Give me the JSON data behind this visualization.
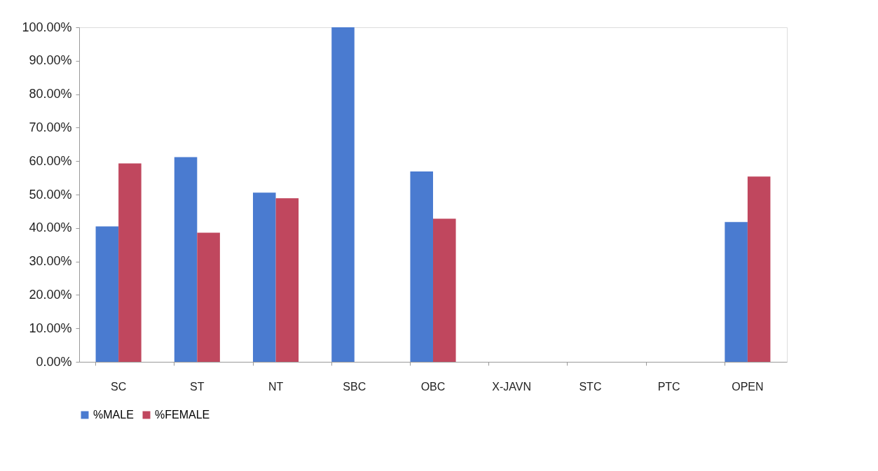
{
  "chart_data": {
    "type": "bar",
    "categories": [
      "SC",
      "ST",
      "NT",
      "SBC",
      "OBC",
      "X-JAVN",
      "STC",
      "PTC",
      "OPEN"
    ],
    "series": [
      {
        "name": "%MALE",
        "color": "#4a7bd0",
        "values": [
          40.5,
          61.2,
          50.6,
          100,
          56.9,
          0,
          0,
          0,
          41.8
        ]
      },
      {
        "name": "%FEMALE",
        "color": "#c0475e",
        "values": [
          59.3,
          38.6,
          48.9,
          0,
          42.8,
          0,
          0,
          0,
          55.4
        ]
      }
    ],
    "ylim": [
      0,
      100
    ],
    "yticks": [
      {
        "value": 0,
        "label": "0.00%"
      },
      {
        "value": 10,
        "label": "10.00%"
      },
      {
        "value": 20,
        "label": "20.00%"
      },
      {
        "value": 30,
        "label": "30.00%"
      },
      {
        "value": 40,
        "label": "40.00%"
      },
      {
        "value": 50,
        "label": "50.00%"
      },
      {
        "value": 60,
        "label": "60.00%"
      },
      {
        "value": 70,
        "label": "70.00%"
      },
      {
        "value": 80,
        "label": "80.00%"
      },
      {
        "value": 90,
        "label": "90.00%"
      },
      {
        "value": 100,
        "label": "100.00%"
      }
    ],
    "grid": false,
    "legend": "bottom"
  }
}
